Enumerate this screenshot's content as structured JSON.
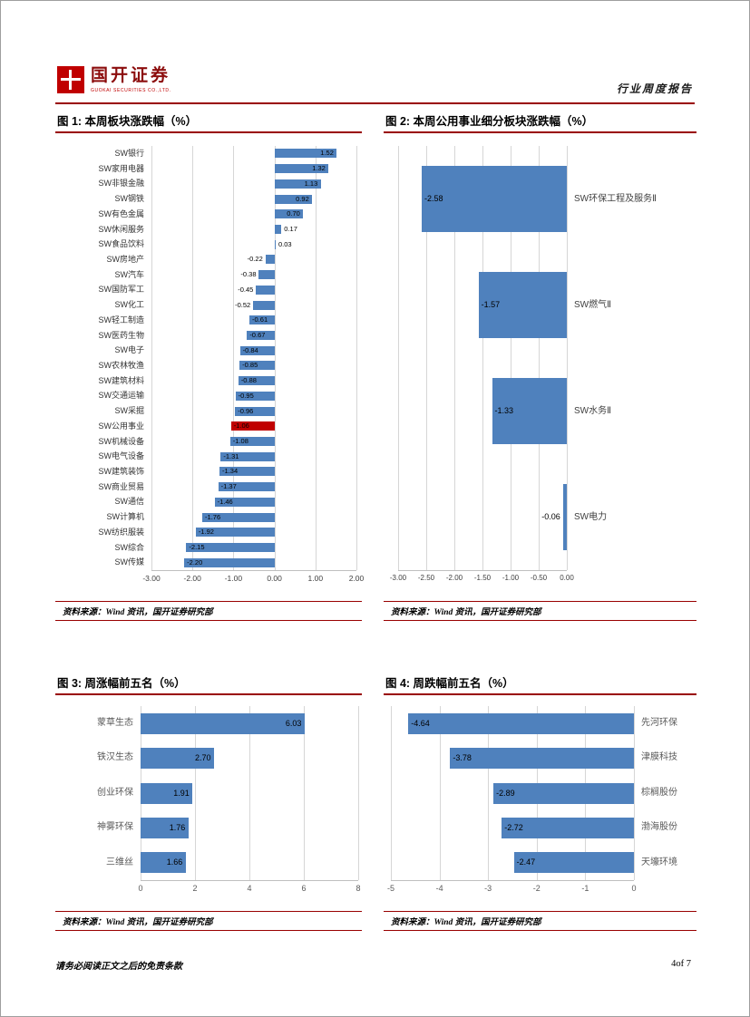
{
  "header": {
    "logo_title": "国开证券",
    "logo_subtext": "GUOKAI SECURITIES CO.,LTD.",
    "report_type": "行业周度报告"
  },
  "source_note": "资料来源：Wind 资讯，国开证券研究部",
  "footer": {
    "disclaimer": "请务必阅读正文之后的免责条款",
    "page_number": "4of 7"
  },
  "colors": {
    "bar_blue": "#4f81bd",
    "highlight_red": "#c00000",
    "rule_red": "#990000"
  },
  "chart_data": [
    {
      "id": "chart1",
      "type": "bar",
      "orientation": "horizontal",
      "title": "图 1: 本周板块涨跌幅（%）",
      "categories": [
        "SW银行",
        "SW家用电器",
        "SW非银金融",
        "SW钢铁",
        "SW有色金属",
        "SW休闲服务",
        "SW食品饮料",
        "SW房地产",
        "SW汽车",
        "SW国防军工",
        "SW化工",
        "SW轻工制造",
        "SW医药生物",
        "SW电子",
        "SW农林牧渔",
        "SW建筑材料",
        "SW交通运输",
        "SW采掘",
        "SW公用事业",
        "SW机械设备",
        "SW电气设备",
        "SW建筑装饰",
        "SW商业贸易",
        "SW通信",
        "SW计算机",
        "SW纺织服装",
        "SW综合",
        "SW传媒"
      ],
      "values": [
        1.52,
        1.32,
        1.13,
        0.92,
        0.7,
        0.17,
        0.03,
        -0.22,
        -0.38,
        -0.45,
        -0.52,
        -0.61,
        -0.67,
        -0.84,
        -0.85,
        -0.88,
        -0.95,
        -0.96,
        -1.06,
        -1.08,
        -1.31,
        -1.34,
        -1.37,
        -1.46,
        -1.76,
        -1.92,
        -2.15,
        -2.2
      ],
      "bar_color": "#4f81bd",
      "highlight": {
        "index": 18,
        "category": "SW公用事业",
        "color": "#c00000"
      },
      "xlim": [
        -3,
        2
      ],
      "xticks": [
        -3,
        -2,
        -1,
        0,
        1,
        2
      ],
      "tick_decimals": 2,
      "value_decimals": 2,
      "label_side": "left",
      "grid": true
    },
    {
      "id": "chart2",
      "type": "bar",
      "orientation": "horizontal",
      "title": "图 2: 本周公用事业细分板块涨跌幅（%）",
      "categories": [
        "SW环保工程及服务Ⅱ",
        "SW燃气Ⅱ",
        "SW水务Ⅱ",
        "SW电力"
      ],
      "values": [
        -2.58,
        -1.57,
        -1.33,
        -0.06
      ],
      "bar_color": "#4f81bd",
      "xlim": [
        -3,
        0
      ],
      "xticks": [
        -3,
        -2.5,
        -2,
        -1.5,
        -1,
        -0.5,
        0
      ],
      "tick_decimals": 2,
      "value_decimals": 2,
      "label_side": "right",
      "grid": true
    },
    {
      "id": "chart3",
      "type": "bar",
      "orientation": "horizontal",
      "title": "图 3: 周涨幅前五名（%）",
      "categories": [
        "蒙草生态",
        "铁汉生态",
        "创业环保",
        "神雾环保",
        "三维丝"
      ],
      "values": [
        6.03,
        2.7,
        1.91,
        1.76,
        1.66
      ],
      "bar_color": "#4f81bd",
      "xlim": [
        0,
        8
      ],
      "xticks": [
        0,
        2,
        4,
        6,
        8
      ],
      "tick_decimals": 0,
      "value_decimals": 2,
      "label_side": "left",
      "grid": true
    },
    {
      "id": "chart4",
      "type": "bar",
      "orientation": "horizontal",
      "title": "图 4: 周跌幅前五名（%）",
      "categories": [
        "先河环保",
        "津膜科技",
        "棕榈股份",
        "渤海股份",
        "天壕环境"
      ],
      "values": [
        -4.64,
        -3.78,
        -2.89,
        -2.72,
        -2.47
      ],
      "bar_color": "#4f81bd",
      "xlim": [
        -5,
        0
      ],
      "xticks": [
        -5,
        -4,
        -3,
        -2,
        -1,
        0
      ],
      "tick_decimals": 0,
      "value_decimals": 2,
      "label_side": "right",
      "grid": true
    }
  ]
}
